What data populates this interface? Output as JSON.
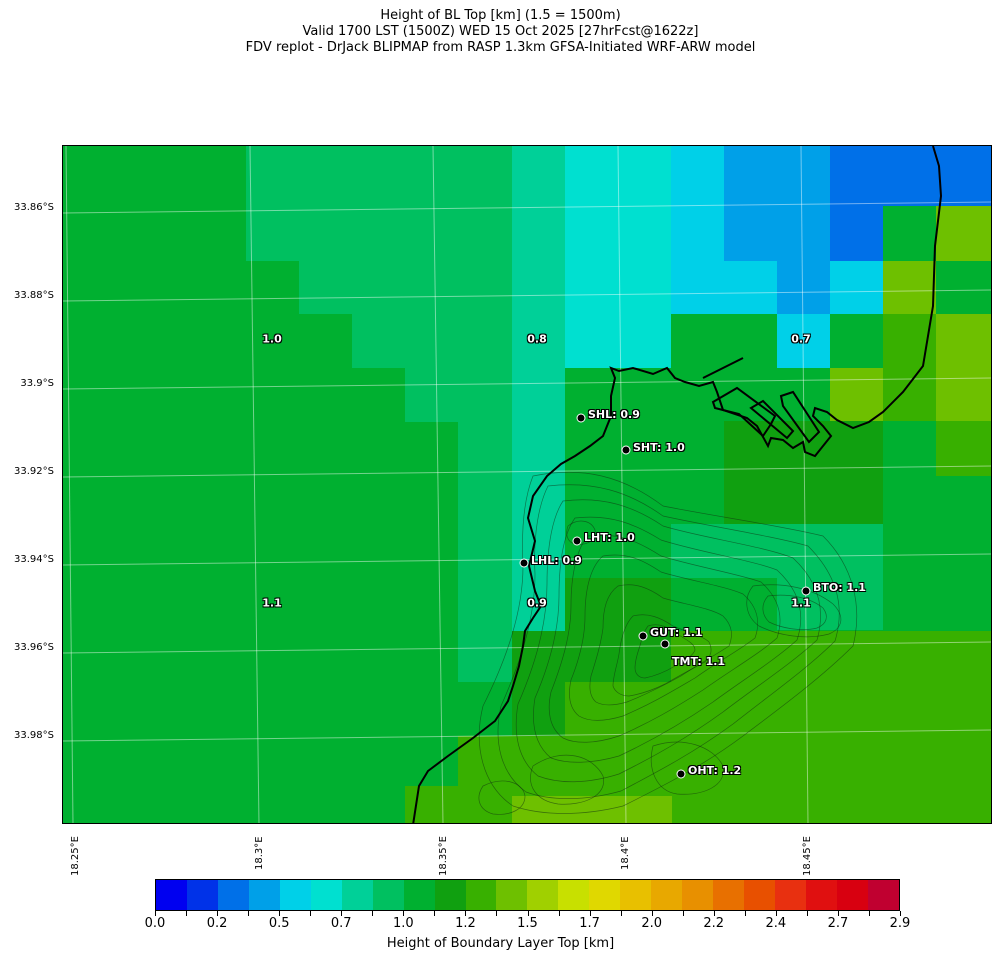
{
  "title": {
    "line1": "Height of BL Top [km] (1.5 = 1500m)",
    "line2": "Valid 1700 LST (1500Z) WED 15 Oct 2025 [27hrFcst@1622z]",
    "line3": "FDV replot - DrJack BLIPMAP from RASP 1.3km GFSA-Initiated WRF-ARW model"
  },
  "axes": {
    "lat_ticks": [
      "33.86°S",
      "33.88°S",
      "33.9°S",
      "33.92°S",
      "33.94°S",
      "33.96°S",
      "33.98°S"
    ],
    "lon_ticks": [
      "18.25°E",
      "18.3°E",
      "18.35°E",
      "18.4°E",
      "18.45°E"
    ]
  },
  "grid_values": [
    "1.0",
    "0.8",
    "0.7",
    "1.1",
    "0.9",
    "1.1"
  ],
  "stations": [
    {
      "name": "SHL",
      "label": "SHL: 0.9"
    },
    {
      "name": "SHT",
      "label": "SHT: 1.0"
    },
    {
      "name": "LHT",
      "label": "LHT: 1.0"
    },
    {
      "name": "LHL",
      "label": "LHL: 0.9"
    },
    {
      "name": "BTO",
      "label": "BTO: 1.1"
    },
    {
      "name": "GUT",
      "label": "GUT: 1.1"
    },
    {
      "name": "TMT",
      "label": "TMT: 1.1"
    },
    {
      "name": "OHT",
      "label": "OHT: 1.2"
    }
  ],
  "colorbar": {
    "label": "Height of Boundary Layer Top [km]",
    "ticks": [
      "0.0",
      "0.2",
      "0.5",
      "0.7",
      "1.0",
      "1.2",
      "1.5",
      "1.7",
      "2.0",
      "2.2",
      "2.4",
      "2.7",
      "2.9"
    ],
    "colors": [
      "#0000f0",
      "#0032e8",
      "#0070e8",
      "#00a0e8",
      "#00d0e8",
      "#00e0d0",
      "#00d098",
      "#00c060",
      "#00b030",
      "#10a010",
      "#38b000",
      "#6ec000",
      "#a0d000",
      "#c8e000",
      "#e0d800",
      "#e8c000",
      "#e8a800",
      "#e89000",
      "#e87000",
      "#e85000",
      "#e83010",
      "#e01010",
      "#d80010",
      "#c00030"
    ]
  }
}
